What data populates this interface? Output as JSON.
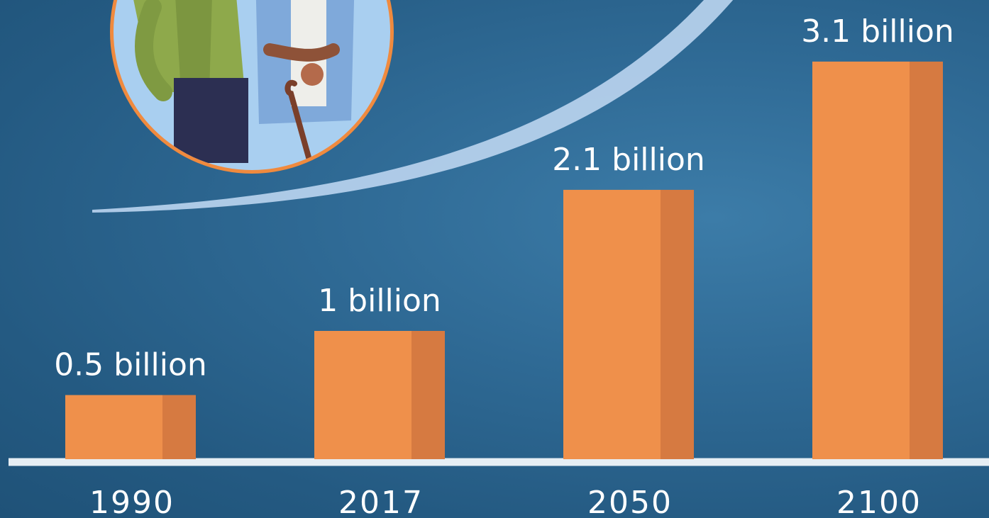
{
  "chart_data": {
    "type": "bar",
    "title": "",
    "xlabel": "",
    "ylabel": "",
    "categories": [
      "1990",
      "2017",
      "2050",
      "2100"
    ],
    "values": [
      0.5,
      1,
      2.1,
      3.1
    ],
    "value_labels": [
      "0.5 billion",
      "1 billion",
      "2.1 billion",
      "3.1 billion"
    ],
    "unit": "billion",
    "ylim": [
      0,
      3.3
    ],
    "grid": false,
    "legend": "none"
  },
  "colors": {
    "background": "#2a6690",
    "bar_front": "#ef904b",
    "bar_side": "#d67a41",
    "axis": "#e6eef4",
    "swoosh": "#b9d2ee",
    "text": "#ffffff"
  },
  "illustration": {
    "icon": "elderly-couple-icon"
  }
}
